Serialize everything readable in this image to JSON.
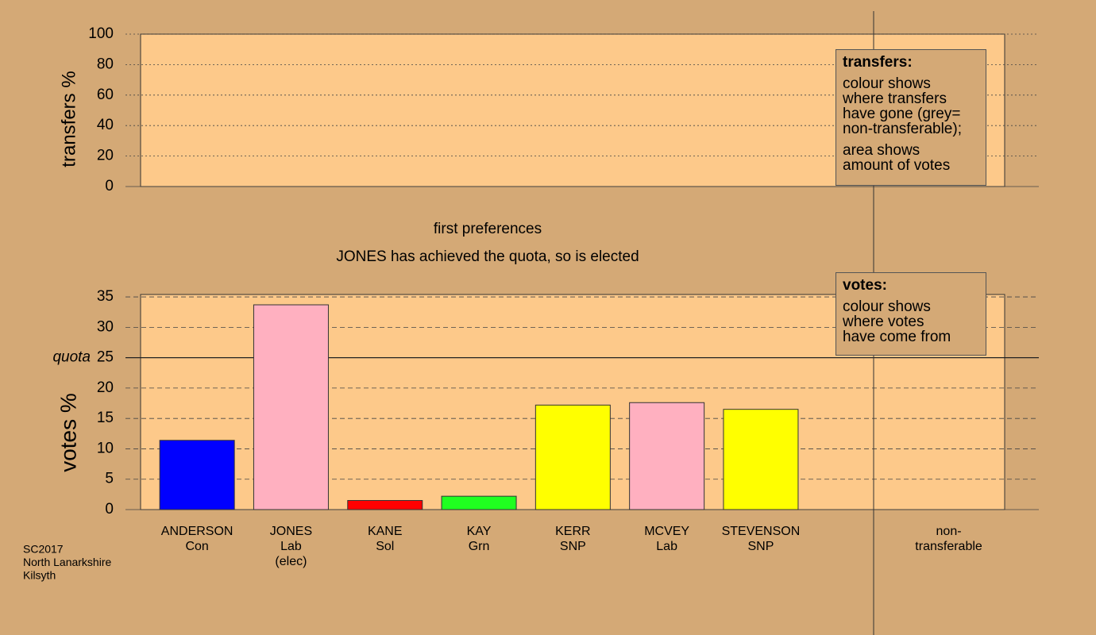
{
  "chart_data": [
    {
      "type": "bar",
      "ylabel": "transfers %",
      "ylim": [
        0,
        100
      ],
      "yticks": [
        0,
        20,
        40,
        60,
        80,
        100
      ],
      "legend": {
        "title": "transfers:",
        "paragraphs": [
          [
            "colour shows",
            "where transfers",
            "have gone (grey=",
            "non-transferable);"
          ],
          [
            "area shows",
            "amount of votes"
          ]
        ]
      }
    },
    {
      "type": "bar",
      "ylabel": "votes %",
      "ylim": [
        0,
        35.4
      ],
      "yticks": [
        0,
        5,
        10,
        15,
        20,
        25,
        30,
        35
      ],
      "quota": {
        "label": "quota",
        "value": 25
      },
      "categories": [
        "ANDERSON",
        "JONES",
        "KANE",
        "KAY",
        "KERR",
        "MCVEY",
        "STEVENSON"
      ],
      "parties": [
        "Con",
        "Lab",
        "Sol",
        "Grn",
        "SNP",
        "Lab",
        "SNP"
      ],
      "notes": [
        null,
        "(elec)",
        null,
        null,
        null,
        null,
        null
      ],
      "values": [
        11.4,
        33.7,
        1.5,
        2.2,
        17.2,
        17.6,
        16.5
      ],
      "colors": [
        "#0000ff",
        "#ffb0c0",
        "#ff0000",
        "#20ff20",
        "#ffff00",
        "#ffb0c0",
        "#ffff00"
      ],
      "nontransferable": "non-transferable",
      "legend": {
        "title": "votes:",
        "paragraphs": [
          [
            "colour shows",
            "where votes",
            "have come from"
          ]
        ]
      }
    }
  ],
  "subtitle": "first preferences",
  "status": "JONES has achieved the quota, so is elected",
  "footer": [
    "SC2017",
    "North Lanarkshire",
    "Kilsyth"
  ]
}
